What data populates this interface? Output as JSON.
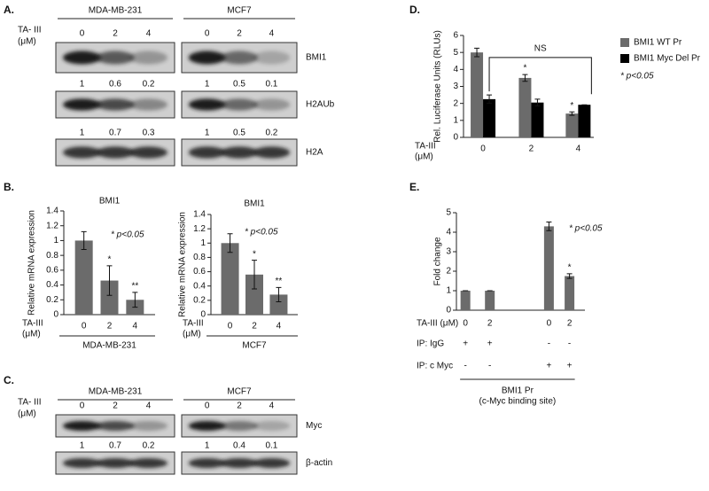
{
  "panel_labels": {
    "A": "A.",
    "B": "B.",
    "C": "C.",
    "D": "D.",
    "E": "E."
  },
  "blot_panels": [
    {
      "treatment_label": "TA- III",
      "unit_label": "(μM)",
      "cell_lines": [
        "MDA-MB-231",
        "MCF7"
      ],
      "doses": [
        "0",
        "2",
        "4"
      ],
      "blots": [
        {
          "name": "BMI1",
          "quantification": [
            [
              1,
              0.6,
              0.2
            ],
            [
              1,
              0.5,
              0.1
            ]
          ]
        },
        {
          "name": "H2AUb",
          "quantification": [
            [
              1,
              0.7,
              0.3
            ],
            [
              1,
              0.5,
              0.2
            ]
          ]
        },
        {
          "name": "H2A"
        }
      ]
    },
    {
      "treatment_label": "TA- III",
      "unit_label": "(μM)",
      "cell_lines": [
        "MDA-MB-231",
        "MCF7"
      ],
      "doses": [
        "0",
        "2",
        "4"
      ],
      "blots": [
        {
          "name": "Myc",
          "quantification": [
            [
              1,
              0.7,
              0.2
            ],
            [
              1,
              0.4,
              0.1
            ]
          ]
        },
        {
          "name": "β-actin"
        }
      ]
    }
  ],
  "chart_data": [
    {
      "type": "bar",
      "title": "BMI1",
      "y_label": "Relative mRNA expression",
      "x_label": "TA-III",
      "x_unit": "(μM)",
      "categories": [
        "0",
        "2",
        "4"
      ],
      "values": [
        1,
        0.46,
        0.2
      ],
      "errors": [
        0.12,
        0.2,
        0.1
      ],
      "markers": [
        null,
        "*",
        "**"
      ],
      "color": "#6b6b6b",
      "group_label": "MDA-MB-231",
      "note": "* p<0.05",
      "ylim": [
        0,
        1.4
      ],
      "yticks": [
        0,
        0.2,
        0.4,
        0.6,
        0.8,
        1,
        1.2,
        1.4
      ]
    },
    {
      "type": "bar",
      "title": "BMI1",
      "y_label": "Relative mRNA expression",
      "x_label": "TA-III",
      "x_unit": "(μM)",
      "categories": [
        "0",
        "2",
        "4"
      ],
      "values": [
        1,
        0.56,
        0.28
      ],
      "errors": [
        0.13,
        0.2,
        0.1
      ],
      "markers": [
        null,
        "*",
        "**"
      ],
      "color": "#6b6b6b",
      "group_label": "MCF7",
      "note": "* p<0.05",
      "ylim": [
        0,
        1.4
      ],
      "yticks": [
        0,
        0.2,
        0.4,
        0.6,
        0.8,
        1,
        1.2,
        1.4
      ]
    },
    {
      "type": "bar",
      "y_label": "Rel. Luciferase Units (RLUs)",
      "x_label": "TA-III",
      "x_unit": "(μM)",
      "categories": [
        "0",
        "2",
        "4"
      ],
      "series": [
        {
          "name": "BMI1  WT Pr",
          "color": "#6b6b6b",
          "values": [
            5,
            3.5,
            1.4
          ],
          "errors": [
            0.25,
            0.2,
            0.1
          ],
          "markers": [
            null,
            "*",
            "*"
          ]
        },
        {
          "name": "BMI1  Myc Del Pr",
          "color": "#000000",
          "values": [
            2.25,
            2.05,
            1.92
          ],
          "errors": [
            0.25,
            0.2,
            0
          ]
        }
      ],
      "annotation": "NS",
      "note": "* p<0.05",
      "legend": "right",
      "ylim": [
        0,
        6
      ],
      "yticks": [
        0,
        1,
        2,
        3,
        4,
        5,
        6
      ]
    },
    {
      "type": "bar",
      "y_label": "Fold change",
      "x_label": "TA-III  (μM)",
      "categories": [
        "0",
        "2",
        "0",
        "2"
      ],
      "values": [
        1,
        1,
        4.3,
        1.75
      ],
      "errors": [
        0,
        0,
        0.22,
        0.12
      ],
      "markers": [
        null,
        null,
        null,
        "*"
      ],
      "color": "#6b6b6b",
      "note": "* p<0.05",
      "table": [
        {
          "label": "IP:  IgG",
          "cells": [
            "+",
            "+",
            "-",
            "-"
          ]
        },
        {
          "label": "IP:  c Myc",
          "cells": [
            "-",
            "-",
            "+",
            "+"
          ]
        }
      ],
      "footer": [
        "BMI1  Pr",
        "(c-Myc binding site)"
      ],
      "ylim": [
        0,
        5
      ],
      "yticks": [
        0,
        1,
        2,
        3,
        4,
        5
      ]
    }
  ]
}
